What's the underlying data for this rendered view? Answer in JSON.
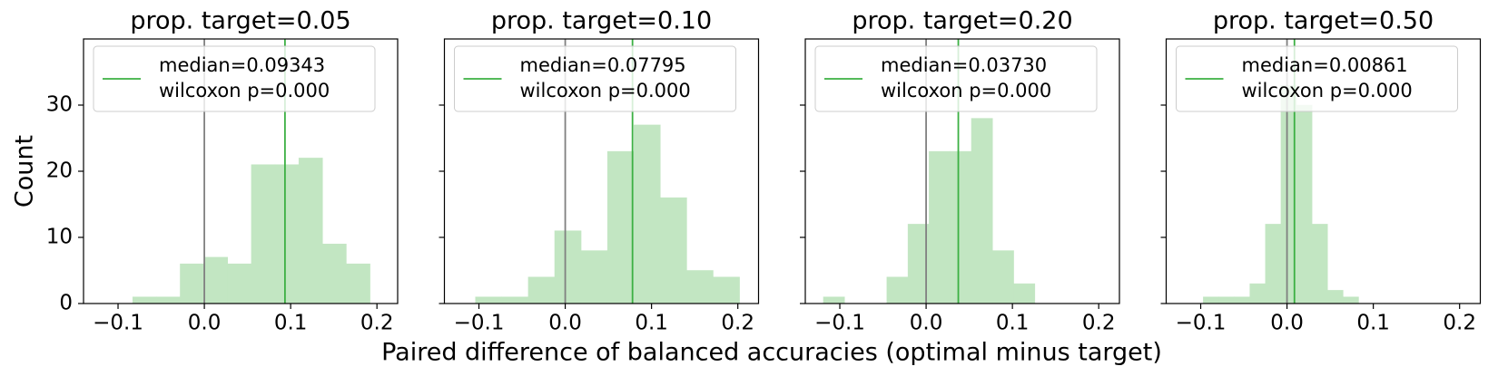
{
  "chart_data": [
    {
      "type": "histogram",
      "title": "prop. target=0.05",
      "bins": [
        -0.083,
        -0.0555,
        -0.028,
        -0.0005,
        0.027,
        0.0545,
        0.082,
        0.1095,
        0.137,
        0.1645,
        0.192
      ],
      "counts": [
        1,
        1,
        6,
        7,
        6,
        21,
        21,
        22,
        9,
        6
      ],
      "color": "#c2e6c2",
      "xlim": [
        -0.14,
        0.224
      ],
      "xticks": [
        {
          "value": -0.1,
          "label": "−0.1"
        },
        {
          "value": 0,
          "label": "0.0"
        },
        0.1,
        0.2
      ],
      "ylim": [
        0,
        40
      ],
      "yticks": [
        0,
        10,
        20,
        30
      ],
      "show_ytick_labels": true,
      "reference_line": 0,
      "reference_color": "#808080",
      "median": 0.09343,
      "median_color": "#3cb043",
      "legend": [
        "median=0.09343",
        "wilcoxon p=0.000"
      ],
      "legend_loc": "upper left"
    },
    {
      "type": "histogram",
      "title": "prop. target=0.10",
      "bins": [
        -0.104,
        -0.0734,
        -0.0428,
        -0.0122,
        0.0184,
        0.049,
        0.0796,
        0.1102,
        0.1408,
        0.1714,
        0.202
      ],
      "counts": [
        1,
        1,
        4,
        11,
        8,
        23,
        27,
        16,
        5,
        4
      ],
      "color": "#c2e6c2",
      "xlim": [
        -0.14,
        0.224
      ],
      "xticks": [
        {
          "value": -0.1,
          "label": "−0.1"
        },
        {
          "value": 0,
          "label": "0.0"
        },
        0.1,
        0.2
      ],
      "ylim": [
        0,
        40
      ],
      "yticks": [
        0,
        10,
        20,
        30
      ],
      "show_ytick_labels": false,
      "reference_line": 0,
      "reference_color": "#808080",
      "median": 0.07795,
      "median_color": "#3cb043",
      "legend": [
        "median=0.07795",
        "wilcoxon p=0.000"
      ],
      "legend_loc": "upper left"
    },
    {
      "type": "histogram",
      "title": "prop. target=0.20",
      "bins": [
        -0.119,
        -0.0945,
        -0.07,
        -0.0455,
        -0.021,
        0.0035,
        0.028,
        0.0525,
        0.077,
        0.1015,
        0.126
      ],
      "counts": [
        1,
        0,
        0,
        4,
        12,
        23,
        23,
        28,
        8,
        3
      ],
      "color": "#c2e6c2",
      "xlim": [
        -0.14,
        0.224
      ],
      "xticks": [
        {
          "value": -0.1,
          "label": "−0.1"
        },
        {
          "value": 0,
          "label": "0.0"
        },
        0.1,
        0.2
      ],
      "ylim": [
        0,
        40
      ],
      "yticks": [
        0,
        10,
        20,
        30
      ],
      "show_ytick_labels": false,
      "reference_line": 0,
      "reference_color": "#808080",
      "median": 0.0373,
      "median_color": "#3cb043",
      "legend": [
        "median=0.03730",
        "wilcoxon p=0.000"
      ],
      "legend_loc": "upper left"
    },
    {
      "type": "histogram",
      "title": "prop. target=0.50",
      "bins": [
        -0.097,
        -0.079,
        -0.061,
        -0.043,
        -0.025,
        -0.007,
        0.011,
        0.029,
        0.047,
        0.065,
        0.083
      ],
      "counts": [
        1,
        1,
        1,
        3,
        12,
        33,
        30,
        12,
        2,
        1
      ],
      "color": "#c2e6c2",
      "xlim": [
        -0.14,
        0.224
      ],
      "xticks": [
        {
          "value": -0.1,
          "label": "−0.1"
        },
        {
          "value": 0,
          "label": "0.0"
        },
        0.1,
        0.2
      ],
      "ylim": [
        0,
        40
      ],
      "yticks": [
        0,
        10,
        20,
        30
      ],
      "show_ytick_labels": false,
      "reference_line": 0,
      "reference_color": "#808080",
      "median": 0.00861,
      "median_color": "#3cb043",
      "legend": [
        "median=0.00861",
        "wilcoxon p=0.000"
      ],
      "legend_loc": "upper left"
    }
  ],
  "xlabel": "Paired difference of balanced accuracies (optimal minus target)",
  "ylabel": "Count"
}
